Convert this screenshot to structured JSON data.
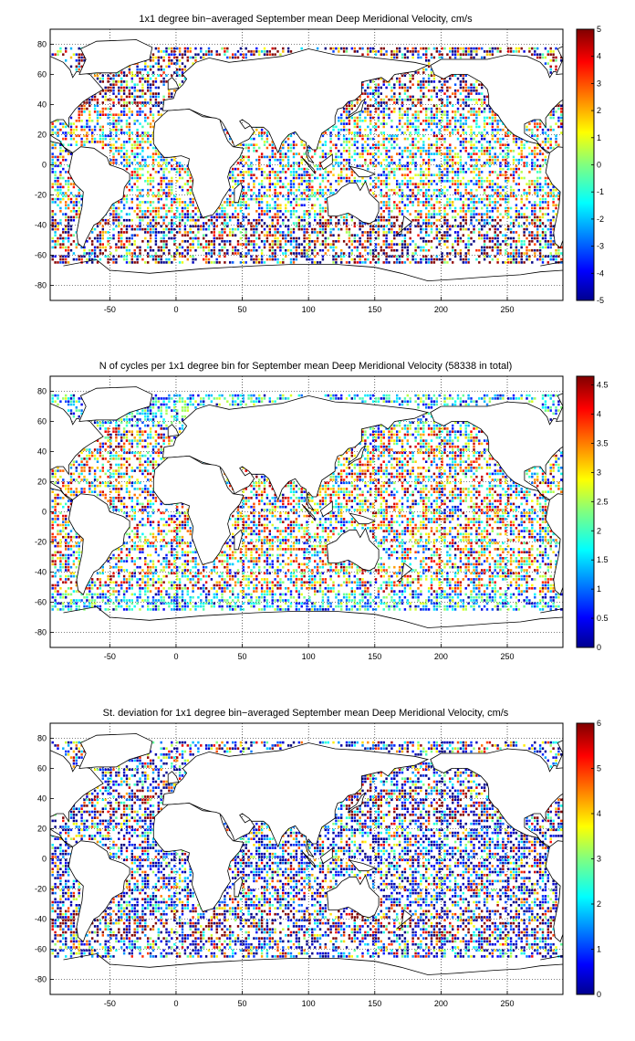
{
  "figure": {
    "panels": [
      {
        "title": "1x1 degree bin−averaged September mean Deep Meridional Velocity, cm/s",
        "colorbar_ticks": [
          "5",
          "4",
          "3",
          "2",
          "1",
          "0",
          "-1",
          "-2",
          "-3",
          "-4",
          "-5"
        ]
      },
      {
        "title": "N of cycles per 1x1 degree bin for September mean Deep Meridional Velocity (58338 in total)",
        "colorbar_ticks": [
          "4.5",
          "4",
          "3.5",
          "3",
          "2.5",
          "2",
          "1.5",
          "1",
          "0.5",
          "0"
        ]
      },
      {
        "title": "St. deviation for 1x1 degree bin−averaged September mean Deep Meridional Velocity, cm/s",
        "colorbar_ticks": [
          "6",
          "5",
          "4",
          "3",
          "2",
          "1",
          "0"
        ]
      }
    ],
    "xticks": [
      "-50",
      "0",
      "50",
      "100",
      "150",
      "200",
      "250"
    ],
    "yticks": [
      "80",
      "60",
      "40",
      "20",
      "0",
      "-20",
      "-40",
      "-60",
      "-80"
    ]
  },
  "chart_data": [
    {
      "type": "heatmap",
      "title": "1x1 degree bin−averaged September mean Deep Meridional Velocity, cm/s",
      "xlim": [
        -95,
        292
      ],
      "ylim": [
        -90,
        90
      ],
      "xticks": [
        -50,
        0,
        50,
        100,
        150,
        200,
        250
      ],
      "yticks": [
        -80,
        -60,
        -40,
        -20,
        0,
        20,
        40,
        60,
        80
      ],
      "colorbar": {
        "range": [
          -5,
          5
        ],
        "ticks": [
          -5,
          -4,
          -3,
          -2,
          -1,
          0,
          1,
          2,
          3,
          4,
          5
        ],
        "colormap": "jet"
      },
      "grid": true
    },
    {
      "type": "heatmap",
      "title": "N of cycles per 1x1 degree bin for September mean Deep Meridional Velocity (58338 in total)",
      "xlim": [
        -95,
        292
      ],
      "ylim": [
        -90,
        90
      ],
      "xticks": [
        -50,
        0,
        50,
        100,
        150,
        200,
        250
      ],
      "yticks": [
        -80,
        -60,
        -40,
        -20,
        0,
        20,
        40,
        60,
        80
      ],
      "colorbar": {
        "range": [
          0,
          4.65
        ],
        "ticks": [
          0,
          0.5,
          1,
          1.5,
          2,
          2.5,
          3,
          3.5,
          4,
          4.5
        ],
        "colormap": "jet"
      },
      "grid": true
    },
    {
      "type": "heatmap",
      "title": "St. deviation for 1x1 degree bin−averaged September mean Deep Meridional Velocity, cm/s",
      "xlim": [
        -95,
        292
      ],
      "ylim": [
        -90,
        90
      ],
      "xticks": [
        -50,
        0,
        50,
        100,
        150,
        200,
        250
      ],
      "yticks": [
        -80,
        -60,
        -40,
        -20,
        0,
        20,
        40,
        60,
        80
      ],
      "colorbar": {
        "range": [
          0,
          6
        ],
        "ticks": [
          0,
          1,
          2,
          3,
          4,
          5,
          6
        ],
        "colormap": "jet"
      },
      "grid": true
    }
  ]
}
